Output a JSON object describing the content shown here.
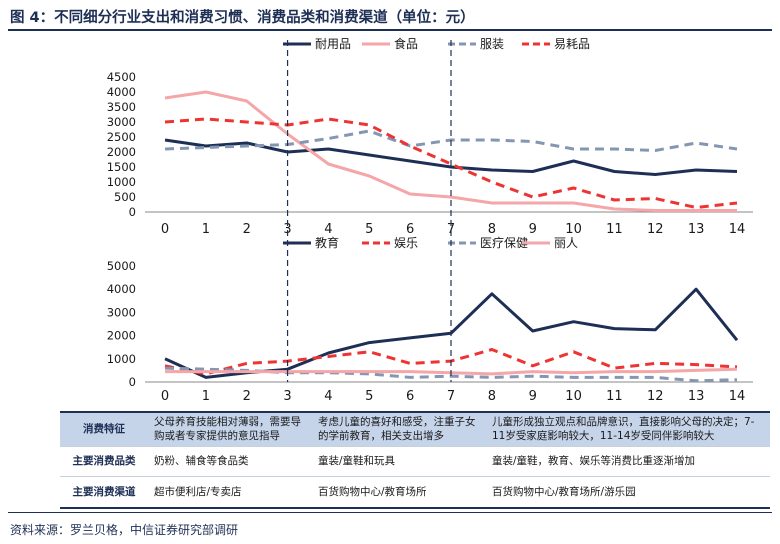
{
  "title": "图 4：不同细分行业支出和消费习惯、消费品类和消费渠道（单位：元）",
  "source": "资料来源：罗兰贝格，中信证券研究部调研",
  "colors": {
    "navy": "#1e2f55",
    "pink": "#f4a6a8",
    "gray": "#8496b2",
    "red": "#ee3333",
    "table_band": "#c6d4ea"
  },
  "chart_data": [
    {
      "type": "line",
      "x": [
        0,
        1,
        2,
        3,
        4,
        5,
        6,
        7,
        8,
        9,
        10,
        11,
        12,
        13,
        14
      ],
      "ylim": [
        0,
        4500
      ],
      "yticks": [
        0,
        500,
        1000,
        1500,
        2000,
        2500,
        3000,
        3500,
        4000,
        4500
      ],
      "vlines": [
        3,
        7
      ],
      "series": [
        {
          "name": "耐用品",
          "color": "#1e2f55",
          "dash": "solid",
          "values": [
            2400,
            2200,
            2300,
            2000,
            2100,
            1900,
            1700,
            1500,
            1400,
            1350,
            1700,
            1350,
            1250,
            1400,
            1350
          ]
        },
        {
          "name": "食品",
          "color": "#f4a6a8",
          "dash": "solid",
          "values": [
            3800,
            4000,
            3700,
            2600,
            1600,
            1200,
            600,
            500,
            300,
            300,
            300,
            100,
            50,
            50,
            50
          ]
        },
        {
          "name": "服装",
          "color": "#8496b2",
          "dash": "dashed",
          "values": [
            2100,
            2150,
            2200,
            2250,
            2450,
            2700,
            2200,
            2400,
            2400,
            2350,
            2100,
            2100,
            2050,
            2300,
            2100
          ]
        },
        {
          "name": "易耗品",
          "color": "#ee3333",
          "dash": "dashed",
          "values": [
            3000,
            3100,
            3000,
            2900,
            3100,
            2900,
            2200,
            1600,
            1000,
            500,
            800,
            400,
            450,
            150,
            300
          ]
        }
      ]
    },
    {
      "type": "line",
      "x": [
        0,
        1,
        2,
        3,
        4,
        5,
        6,
        7,
        8,
        9,
        10,
        11,
        12,
        13,
        14
      ],
      "ylim": [
        0,
        5000
      ],
      "yticks": [
        0,
        1000,
        2000,
        3000,
        4000,
        5000
      ],
      "vlines": [
        3,
        7
      ],
      "series": [
        {
          "name": "教育",
          "color": "#1e2f55",
          "dash": "solid",
          "values": [
            1000,
            200,
            400,
            550,
            1250,
            1700,
            1900,
            2100,
            3800,
            2200,
            2600,
            2300,
            2250,
            4000,
            1800
          ]
        },
        {
          "name": "娱乐",
          "color": "#ee3333",
          "dash": "dashed",
          "values": [
            700,
            350,
            800,
            900,
            1100,
            1300,
            800,
            900,
            1400,
            700,
            1300,
            600,
            800,
            750,
            650
          ]
        },
        {
          "name": "医疗保健",
          "color": "#8496b2",
          "dash": "dashed",
          "values": [
            600,
            550,
            500,
            400,
            400,
            350,
            200,
            250,
            200,
            250,
            200,
            200,
            200,
            50,
            100
          ]
        },
        {
          "name": "丽人",
          "color": "#f4a6a8",
          "dash": "solid",
          "values": [
            450,
            450,
            450,
            450,
            450,
            450,
            450,
            400,
            350,
            450,
            400,
            450,
            450,
            500,
            550
          ]
        }
      ]
    }
  ],
  "table": {
    "rows": [
      {
        "label": "消费特征",
        "highlight": true,
        "cells": [
          "父母养育技能相对薄弱，需要导购或者专家提供的意见指导",
          "考虑儿童的喜好和感受，注重子女的学前教育，相关支出增多",
          "儿童形成独立观点和品牌意识，直接影响父母的决定；7-11岁受家庭影响较大，11-14岁受同伴影响较大"
        ]
      },
      {
        "label": "主要消费品类",
        "highlight": false,
        "cells": [
          "奶粉、辅食等食品类",
          "童装/童鞋和玩具",
          "童装/童鞋，教育、娱乐等消费比重逐渐增加"
        ]
      },
      {
        "label": "主要消费渠道",
        "highlight": false,
        "cells": [
          "超市便利店/专卖店",
          "百货购物中心/教育场所",
          "百货购物中心/教育场所/游乐园"
        ]
      }
    ]
  }
}
